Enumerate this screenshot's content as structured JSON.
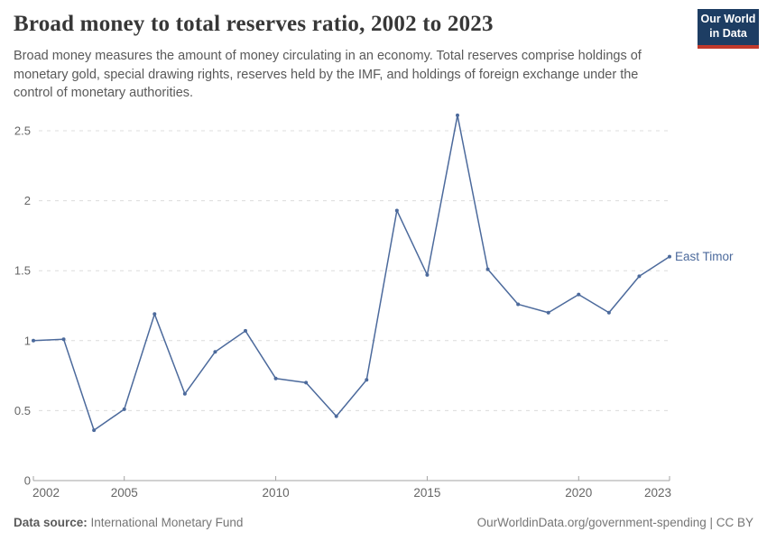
{
  "header": {
    "title": "Broad money to total reserves ratio, 2002 to 2023",
    "subtitle": "Broad money measures the amount of money circulating in an economy. Total reserves comprise holdings of monetary gold, special drawing rights, reserves held by the IMF, and holdings of foreign exchange under the control of monetary authorities."
  },
  "logo": {
    "line1": "Our World",
    "line2": "in Data",
    "bg_color": "#1d3d63",
    "accent_color": "#c0392b"
  },
  "chart_data": {
    "type": "line",
    "title": "Broad money to total reserves ratio, 2002 to 2023",
    "x": [
      2002,
      2003,
      2004,
      2005,
      2006,
      2007,
      2008,
      2009,
      2010,
      2011,
      2012,
      2013,
      2014,
      2015,
      2016,
      2017,
      2018,
      2019,
      2020,
      2021,
      2022,
      2023
    ],
    "series": [
      {
        "name": "East Timor",
        "color": "#4c6a9c",
        "values": [
          1.0,
          1.01,
          0.36,
          0.51,
          1.19,
          0.62,
          0.92,
          1.07,
          0.73,
          0.7,
          0.46,
          0.72,
          1.93,
          1.47,
          2.61,
          1.51,
          1.26,
          1.2,
          1.33,
          1.2,
          1.46,
          1.6
        ]
      }
    ],
    "xlabel": "",
    "ylabel": "",
    "ylim": [
      0,
      2.7
    ],
    "yticks": [
      0,
      0.5,
      1,
      1.5,
      2,
      2.5
    ],
    "ytick_labels": [
      "0",
      "0.5",
      "1",
      "1.5",
      "2",
      "2.5"
    ],
    "xticks": [
      2002,
      2005,
      2010,
      2015,
      2020,
      2023
    ],
    "grid": "horizontal-dashed",
    "grid_color": "#dcdcdc",
    "axis_color": "#a3a3a3",
    "tick_label_color": "#666666",
    "legend": "end-of-line-label"
  },
  "footer": {
    "datasource_label": "Data source:",
    "datasource_value": " International Monetary Fund",
    "credit": "OurWorldinData.org/government-spending | CC BY"
  }
}
